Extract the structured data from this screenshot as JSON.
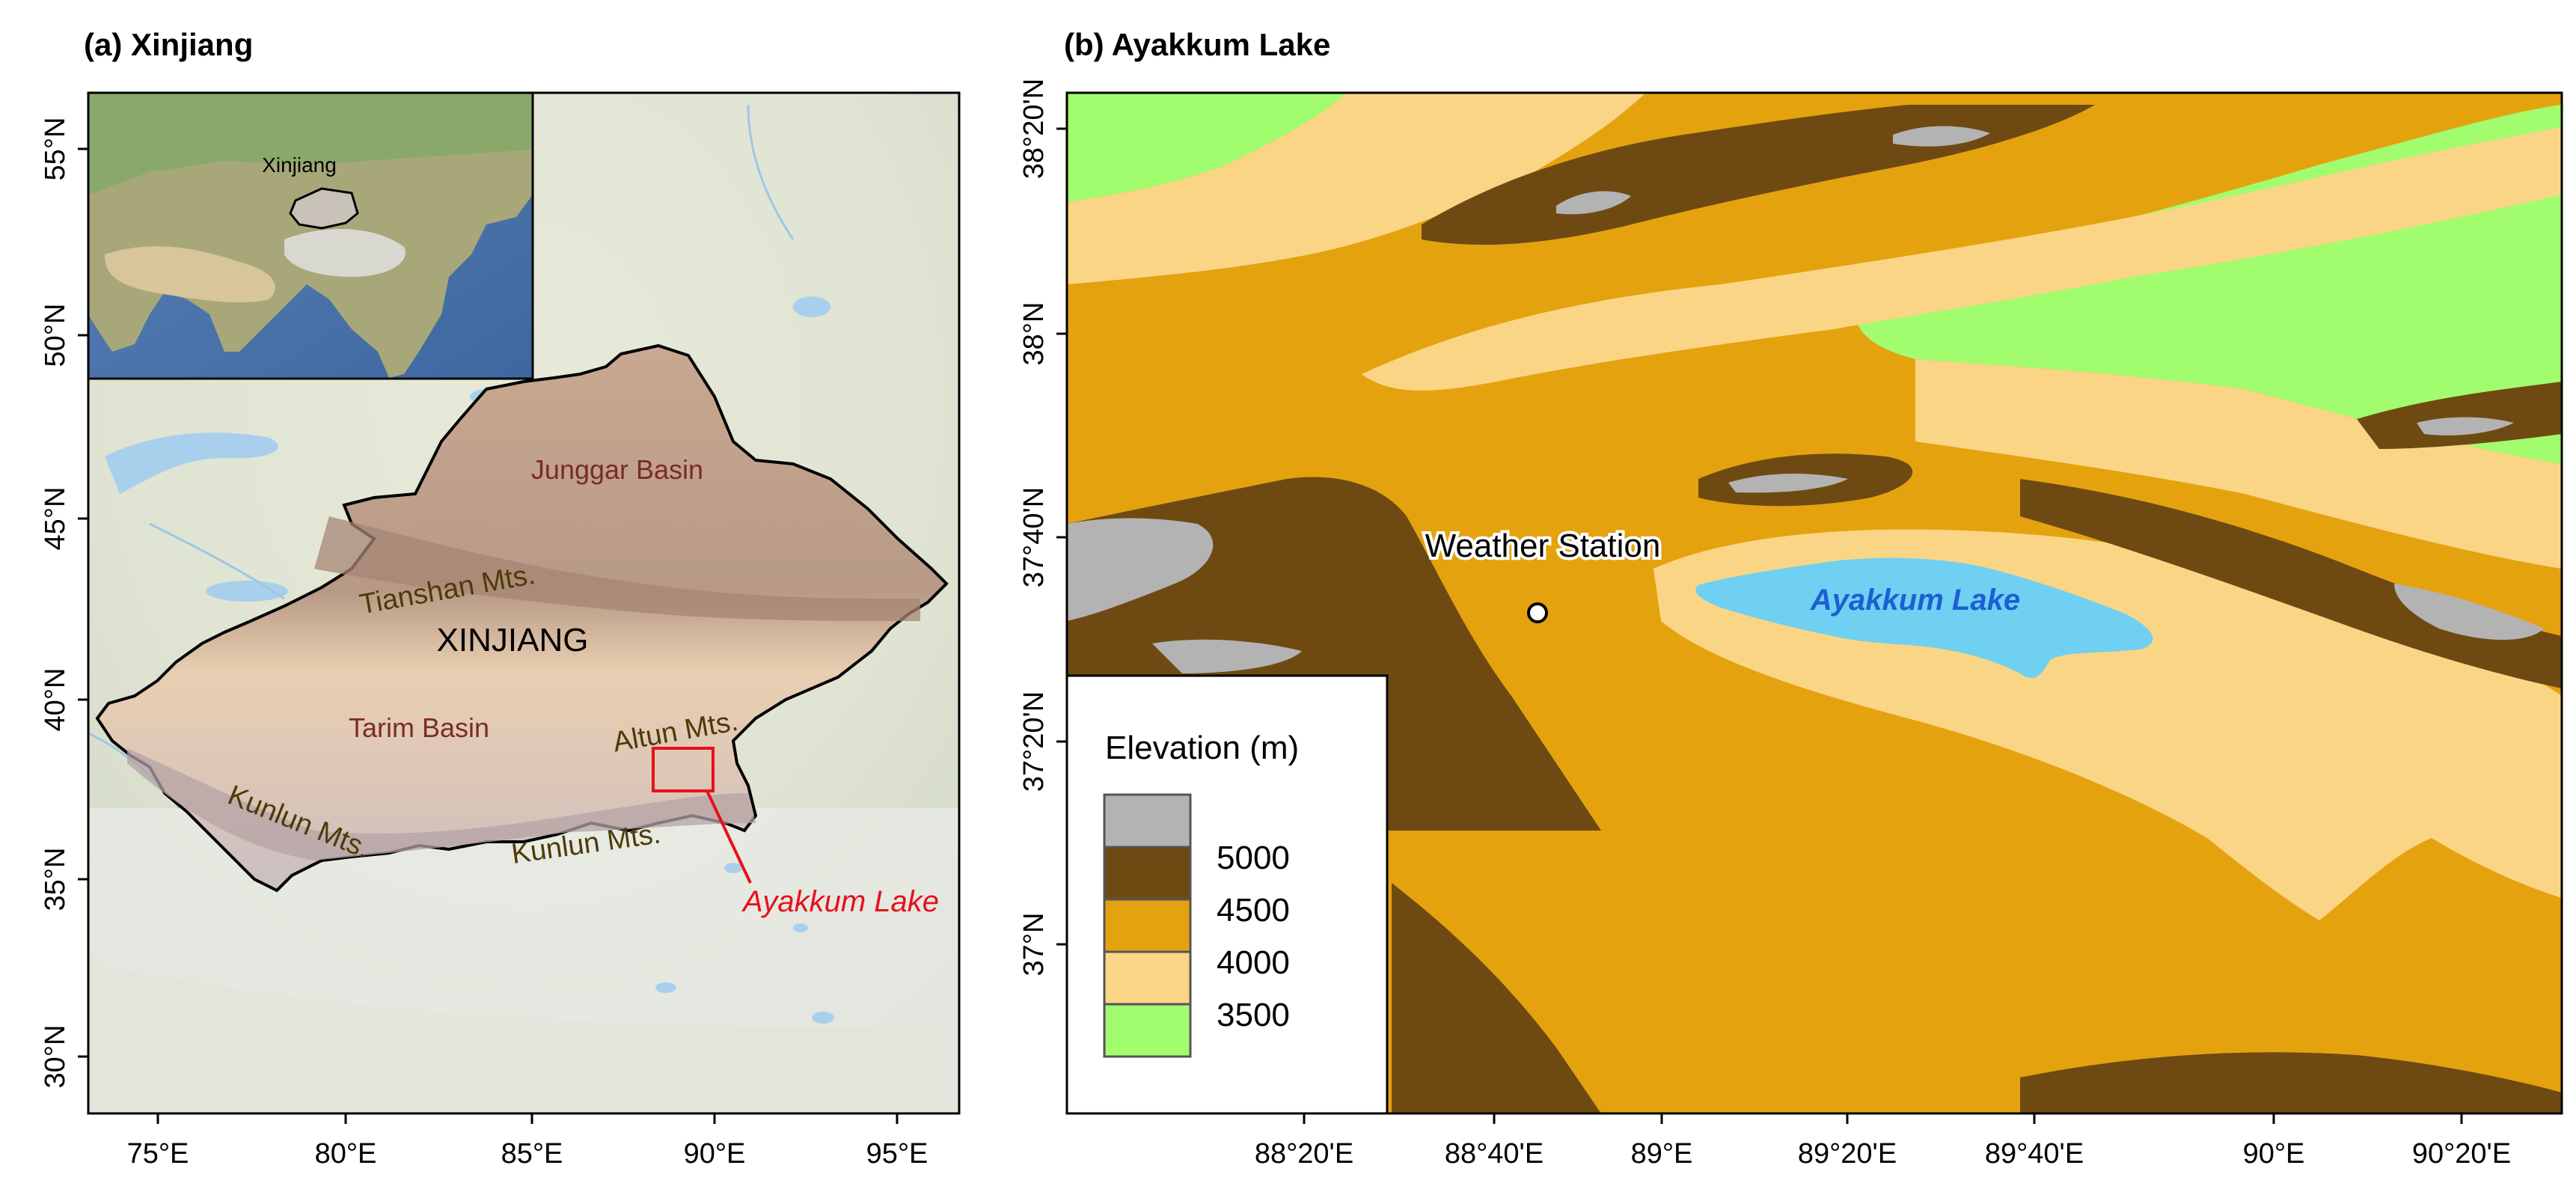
{
  "panel_a": {
    "title": "(a) Xinjiang",
    "lat_ticks": [
      "55°N",
      "50°N",
      "45°N",
      "40°N",
      "35°N",
      "30°N"
    ],
    "lon_ticks": [
      "75°E",
      "80°E",
      "85°E",
      "90°E",
      "95°E"
    ],
    "labels": {
      "xinjiang": "XINJIANG",
      "junggar": "Junggar Basin",
      "tianshan": "Tianshan Mts.",
      "tarim": "Tarim Basin",
      "altun": "Altun Mts.",
      "kunlun_west": "Kunlun Mts.",
      "kunlun_east": "Kunlun Mts.",
      "lake_callout": "Ayakkum Lake"
    },
    "inset": {
      "label": "Xinjiang"
    },
    "colors": {
      "region_label": "#7a2a2a",
      "mountain_label": "#4f3a08",
      "callout": "#e8101a"
    }
  },
  "panel_b": {
    "title": "(b) Ayakkum Lake",
    "lat_ticks": [
      "38°20'N",
      "38°N",
      "37°40'N",
      "37°20'N",
      "37°N"
    ],
    "lon_ticks": [
      "88°20'E",
      "88°40'E",
      "89°E",
      "89°20'E",
      "89°40'E",
      "90°E",
      "90°20'E"
    ],
    "station_label": "Weather Station",
    "lake_label": "Ayakkum Lake",
    "legend": {
      "title": "Elevation (m)",
      "breaks": [
        "5000",
        "4500",
        "4000",
        "3500"
      ],
      "colors": [
        "#b3b3b3",
        "#6e4a12",
        "#e5a20f",
        "#fad585",
        "#a1fc6e"
      ]
    },
    "colors": {
      "lake_fill": "#6fd0f2",
      "lake_label": "#1c5fd4"
    }
  }
}
